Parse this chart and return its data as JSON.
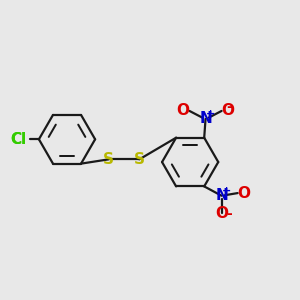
{
  "bg_color": "#e8e8e8",
  "bond_color": "#1a1a1a",
  "bond_width": 1.6,
  "S_color": "#b8b800",
  "Cl_color": "#33cc00",
  "N_color": "#0000cc",
  "O_color": "#dd0000",
  "font_size": 10.5,
  "xlim": [
    -5.2,
    5.8
  ],
  "ylim": [
    -3.2,
    2.8
  ]
}
